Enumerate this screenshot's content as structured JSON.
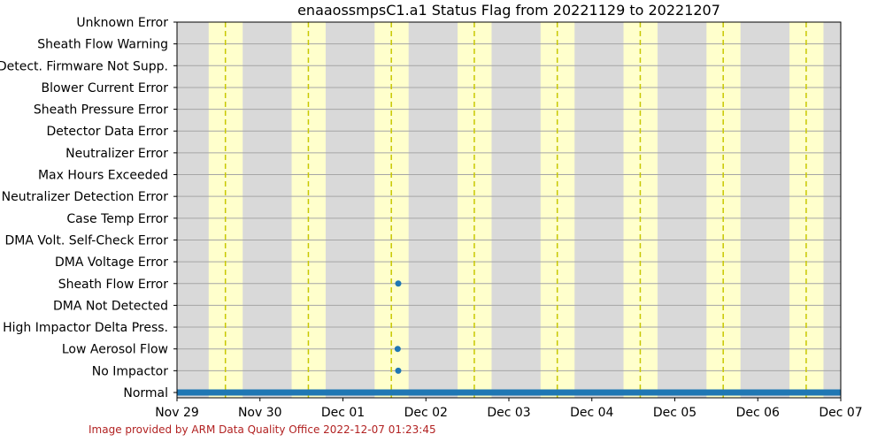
{
  "chart_data": {
    "type": "scatter",
    "title": "enaaossmpsC1.a1 Status Flag from 20221129 to 20221207",
    "xlabel": "",
    "ylabel": "",
    "x_ticks": [
      "Nov 29",
      "Nov 30",
      "Dec 01",
      "Dec 02",
      "Dec 03",
      "Dec 04",
      "Dec 05",
      "Dec 06",
      "Dec 07"
    ],
    "xlim": [
      "2022-11-29",
      "2022-12-07"
    ],
    "categories": [
      "Normal",
      "No Impactor",
      "Low Aerosol Flow",
      "High Impactor Delta Press.",
      "DMA Not Detected",
      "Sheath Flow Error",
      "DMA Voltage Error",
      "DMA Volt. Self-Check Error",
      "Case Temp Error",
      "Neutralizer Detection Error",
      "Max Hours Exceeded",
      "Neutralizer Error",
      "Detector Data Error",
      "Sheath Pressure Error",
      "Blower Current Error",
      "Detect. Firmware Not Supp.",
      "Sheath Flow Warning",
      "Unknown Error"
    ],
    "daylight_periods": [
      {
        "start": "2022-11-29 09:10",
        "end": "2022-11-29 19:00",
        "solar_noon": "2022-11-29 14:00"
      },
      {
        "start": "2022-11-30 09:10",
        "end": "2022-11-30 19:00",
        "solar_noon": "2022-11-30 14:00"
      },
      {
        "start": "2022-12-01 09:10",
        "end": "2022-12-01 19:00",
        "solar_noon": "2022-12-01 14:00"
      },
      {
        "start": "2022-12-02 09:10",
        "end": "2022-12-02 19:00",
        "solar_noon": "2022-12-02 14:00"
      },
      {
        "start": "2022-12-03 09:10",
        "end": "2022-12-03 19:00",
        "solar_noon": "2022-12-03 14:00"
      },
      {
        "start": "2022-12-04 09:10",
        "end": "2022-12-04 19:00",
        "solar_noon": "2022-12-04 14:00"
      },
      {
        "start": "2022-12-05 09:10",
        "end": "2022-12-05 19:00",
        "solar_noon": "2022-12-05 14:00"
      },
      {
        "start": "2022-12-06 09:10",
        "end": "2022-12-06 19:00",
        "solar_noon": "2022-12-06 14:00"
      }
    ],
    "series": [
      {
        "category": "Normal",
        "segments": [
          {
            "start": "2022-11-29 00:00",
            "end": "2022-12-07 00:00"
          }
        ]
      },
      {
        "category": "No Impactor",
        "points": [
          "2022-12-01 16:00"
        ]
      },
      {
        "category": "Low Aerosol Flow",
        "points": [
          "2022-12-01 15:50"
        ]
      },
      {
        "category": "Sheath Flow Error",
        "points": [
          "2022-12-01 16:00"
        ]
      }
    ],
    "grid": true,
    "colors": {
      "background": "#d9d9d9",
      "daylight": "#ffffcc",
      "solar_noon_line": "#c8c800",
      "data": "#1f77b4",
      "grid": "#a6a6a6"
    }
  },
  "footer": "Image provided by ARM Data Quality Office 2022-12-07 01:23:45"
}
